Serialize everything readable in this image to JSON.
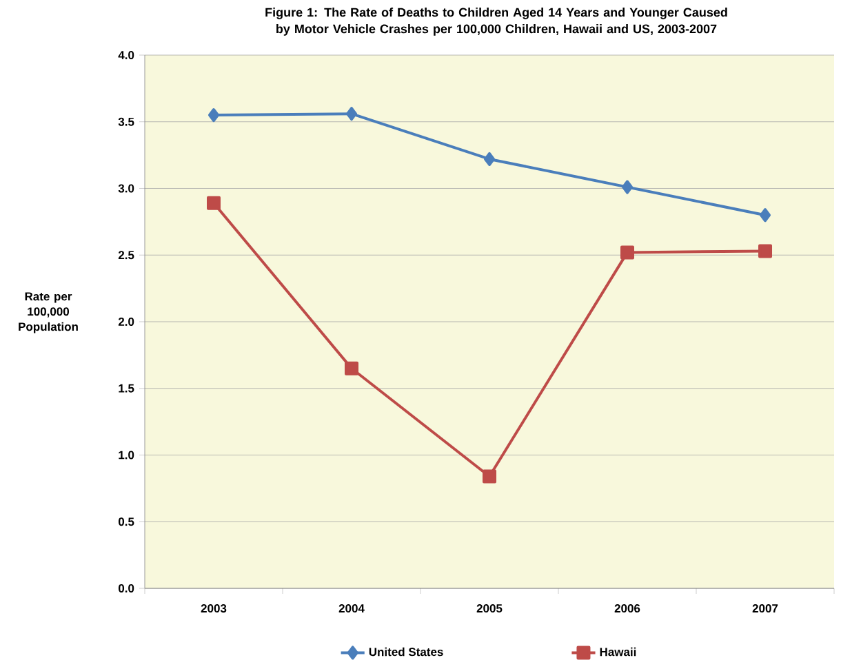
{
  "chart_data": {
    "type": "line",
    "title": "Figure  1: The Rate of Deaths to Children Aged 14 Years and Younger Caused by Motor Vehicle Crashes per 100,000 Children, Hawaii and US, 2003-2007",
    "ylabel": "Rate per 100,000 Population",
    "categories": [
      "2003",
      "2004",
      "2005",
      "2006",
      "2007"
    ],
    "series": [
      {
        "name": "United States",
        "color": "#4a7ebb",
        "marker": "diamond",
        "values": [
          3.55,
          3.56,
          3.22,
          3.01,
          2.8
        ]
      },
      {
        "name": "Hawaii",
        "color": "#be4b48",
        "marker": "square",
        "values": [
          2.89,
          1.65,
          0.84,
          2.52,
          2.53
        ]
      }
    ],
    "ylim": [
      0,
      4
    ],
    "yticks": [
      {
        "value": 0,
        "label": "0.0"
      },
      {
        "value": 0.5,
        "label": "0.5"
      },
      {
        "value": 1,
        "label": "1.0"
      },
      {
        "value": 1.5,
        "label": "1.5"
      },
      {
        "value": 2,
        "label": "2.0"
      },
      {
        "value": 2.5,
        "label": "2.5"
      },
      {
        "value": 3,
        "label": "3.0"
      },
      {
        "value": 3.5,
        "label": "3.5"
      },
      {
        "value": 4,
        "label": "4.0"
      }
    ],
    "grid": "y",
    "legend": "bottom",
    "line_style": "solid"
  }
}
